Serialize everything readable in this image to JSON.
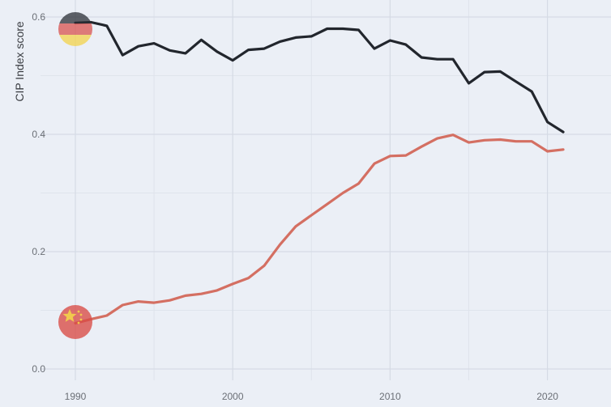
{
  "chart_data": {
    "type": "line",
    "title": "",
    "xlabel": "",
    "ylabel": "CIP Index score",
    "xlim": [
      1990,
      2021
    ],
    "ylim": [
      0.0,
      0.6
    ],
    "x_ticks": [
      "1990",
      "2000",
      "2010",
      "2020"
    ],
    "y_ticks": [
      "0.0",
      "0.2",
      "0.4",
      "0.6"
    ],
    "grid": true,
    "legend": "flag icons at series start",
    "x": [
      1990,
      1991,
      1992,
      1993,
      1994,
      1995,
      1996,
      1997,
      1998,
      1999,
      2000,
      2001,
      2002,
      2003,
      2004,
      2005,
      2006,
      2007,
      2008,
      2009,
      2010,
      2011,
      2012,
      2013,
      2014,
      2015,
      2016,
      2017,
      2018,
      2019,
      2020,
      2021
    ],
    "series": [
      {
        "color": "#22262d",
        "flag": "germany-flag-icon",
        "values": [
          0.59,
          0.591,
          0.585,
          0.535,
          0.55,
          0.555,
          0.543,
          0.538,
          0.561,
          0.541,
          0.526,
          0.544,
          0.546,
          0.558,
          0.565,
          0.567,
          0.58,
          0.58,
          0.578,
          0.546,
          0.56,
          0.553,
          0.531,
          0.528,
          0.528,
          0.487,
          0.506,
          0.507,
          0.49,
          0.473,
          0.421,
          0.404
        ]
      },
      {
        "color": "#d46f62",
        "flag": "china-flag-icon",
        "values": [
          0.078,
          0.085,
          0.091,
          0.109,
          0.115,
          0.113,
          0.117,
          0.125,
          0.128,
          0.134,
          0.145,
          0.155,
          0.176,
          0.212,
          0.243,
          0.262,
          0.281,
          0.3,
          0.316,
          0.35,
          0.363,
          0.364,
          0.379,
          0.393,
          0.399,
          0.386,
          0.39,
          0.391,
          0.388,
          0.388,
          0.371,
          0.374
        ]
      }
    ]
  }
}
